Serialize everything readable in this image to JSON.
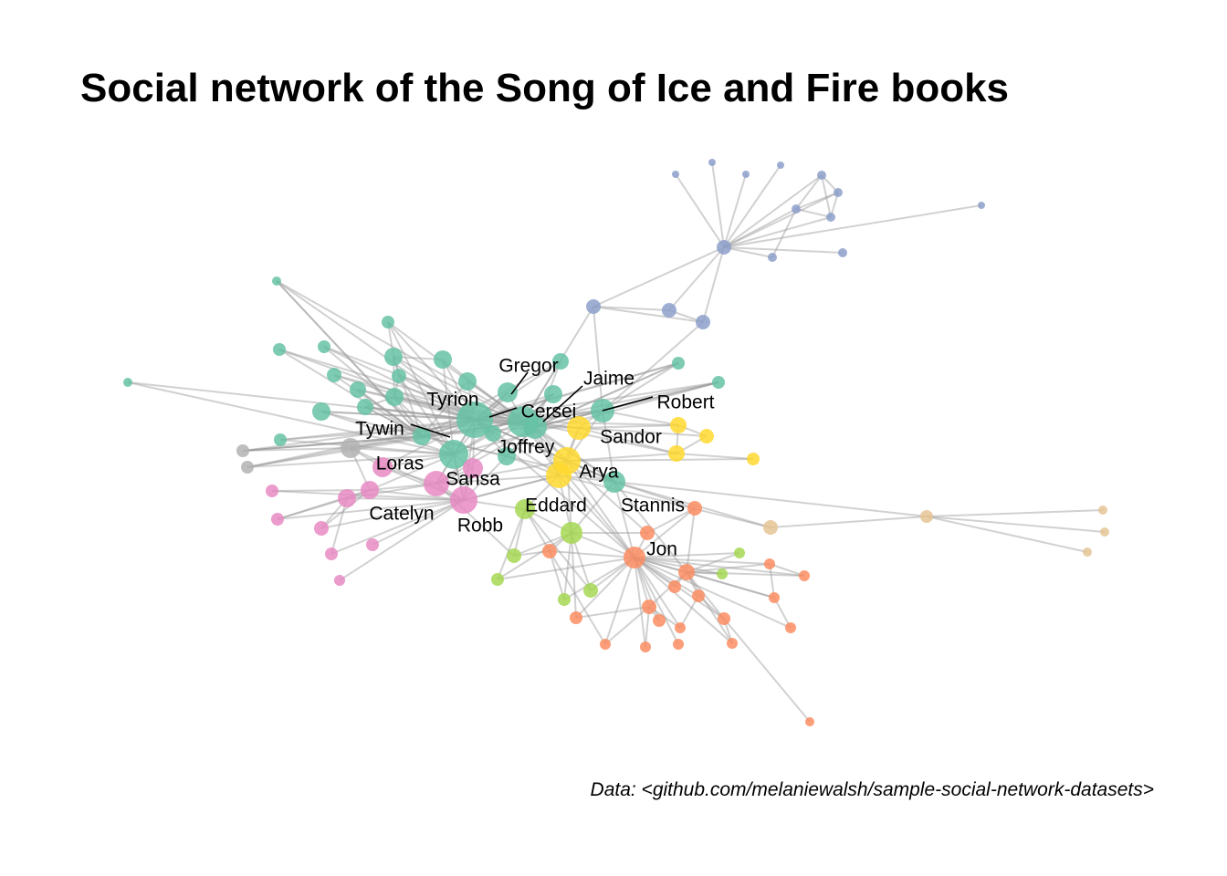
{
  "title": "Social network of the Song of Ice and Fire books",
  "caption": "Data: <github.com/melaniewalsh/sample-social-network-datasets>",
  "colors": {
    "teal": "#66c2a5",
    "blue": "#8da0cb",
    "yellow": "#ffd92f",
    "pink": "#e78ac3",
    "orange": "#fc8d62",
    "lime": "#a6d854",
    "tan": "#e5c494",
    "gray": "#b3b3b3",
    "edge": "#9a9a9a"
  },
  "labels": {
    "gregor": "Gregor",
    "jaime": "Jaime",
    "tyrion": "Tyrion",
    "cersei": "Cersei",
    "robert": "Robert",
    "tywin": "Tywin",
    "sandor": "Sandor",
    "joffrey": "Joffrey",
    "loras": "Loras",
    "arya": "Arya",
    "sansa": "Sansa",
    "eddard": "Eddard",
    "stannis": "Stannis",
    "catelyn": "Catelyn",
    "robb": "Robb",
    "jon": "Jon"
  }
}
